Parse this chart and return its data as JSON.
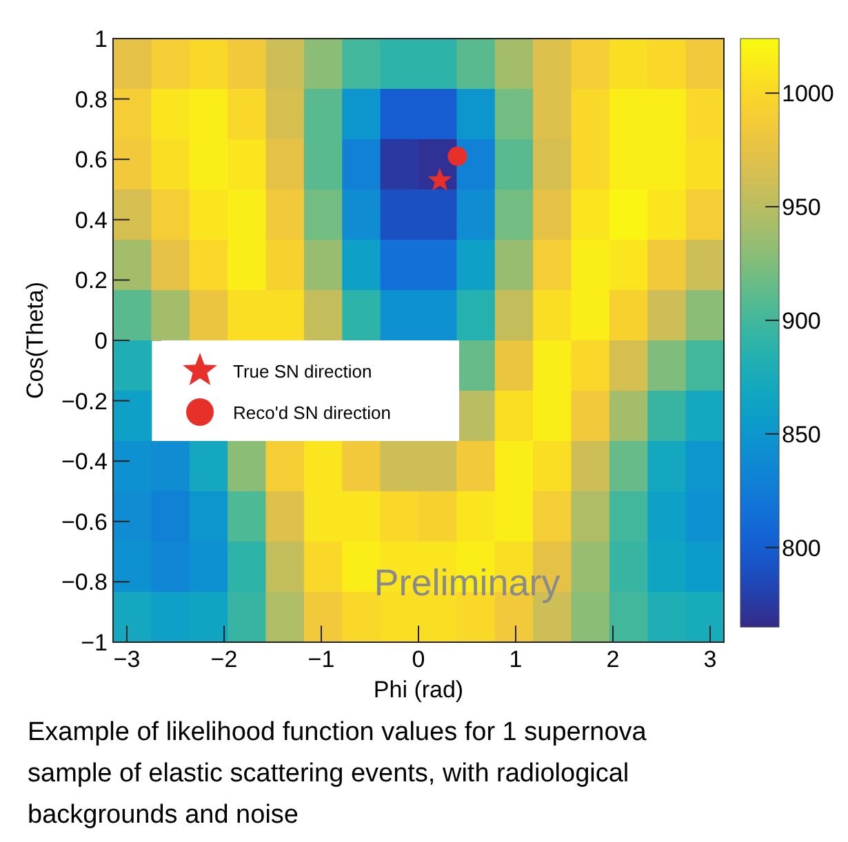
{
  "chart_data": {
    "type": "heatmap",
    "xlabel": "Phi (rad)",
    "ylabel": "Cos(Theta)",
    "xlim": [
      -3.1416,
      3.1416
    ],
    "ylim": [
      -1,
      1
    ],
    "xticks": [
      -3,
      -2,
      -1,
      0,
      1,
      2,
      3
    ],
    "yticks": [
      -1,
      -0.8,
      -0.6,
      -0.4,
      -0.2,
      0,
      0.2,
      0.4,
      0.6,
      0.8,
      1
    ],
    "clim": [
      765,
      1024
    ],
    "cticks": [
      800,
      850,
      900,
      950,
      1000
    ],
    "cells": [
      [
        975,
        990,
        1000,
        985,
        960,
        930,
        900,
        890,
        890,
        910,
        940,
        970,
        990,
        1005,
        1000,
        985
      ],
      [
        990,
        1010,
        1015,
        1000,
        965,
        910,
        850,
        800,
        800,
        850,
        920,
        970,
        1000,
        1015,
        1015,
        1000
      ],
      [
        985,
        1005,
        1015,
        1010,
        975,
        910,
        830,
        775,
        770,
        830,
        910,
        965,
        1000,
        1015,
        1015,
        1005
      ],
      [
        965,
        990,
        1010,
        1015,
        985,
        920,
        840,
        790,
        790,
        840,
        920,
        975,
        1010,
        1020,
        1010,
        990
      ],
      [
        940,
        975,
        1000,
        1015,
        995,
        935,
        860,
        815,
        815,
        860,
        935,
        990,
        1015,
        1010,
        985,
        960
      ],
      [
        910,
        940,
        980,
        1005,
        1005,
        955,
        890,
        845,
        845,
        885,
        955,
        1005,
        1015,
        995,
        960,
        930
      ],
      [
        880,
        null,
        null,
        null,
        null,
        null,
        null,
        null,
        null,
        915,
        980,
        1015,
        1000,
        965,
        925,
        900
      ],
      [
        860,
        null,
        null,
        null,
        null,
        null,
        null,
        null,
        null,
        950,
        1005,
        1015,
        985,
        940,
        895,
        870
      ],
      [
        845,
        840,
        870,
        930,
        990,
        1010,
        985,
        960,
        960,
        985,
        1015,
        1005,
        960,
        915,
        870,
        850
      ],
      [
        840,
        830,
        850,
        905,
        970,
        1010,
        1010,
        1000,
        995,
        1010,
        1015,
        990,
        945,
        900,
        860,
        845
      ],
      [
        845,
        835,
        845,
        890,
        955,
        1000,
        1015,
        1010,
        1010,
        1015,
        1005,
        975,
        935,
        895,
        865,
        855
      ],
      [
        870,
        860,
        865,
        895,
        945,
        985,
        1000,
        1005,
        1005,
        1000,
        985,
        960,
        930,
        900,
        880,
        875
      ]
    ],
    "series": [
      {
        "type": "scatter",
        "name": "True SN direction",
        "color": "#e8302a",
        "marker": "star",
        "x": [
          0.22
        ],
        "values": [
          0.53
        ]
      },
      {
        "type": "scatter",
        "name": "Reco'd SN direction",
        "color": "#e8302a",
        "marker": "circle",
        "x": [
          0.4
        ],
        "values": [
          0.61
        ]
      }
    ],
    "legend": "left",
    "annotations": [
      "Preliminary",
      "Example of likelihood function values for 1 supernova sample of elastic scattering events, with radiological backgrounds and noise"
    ]
  }
}
